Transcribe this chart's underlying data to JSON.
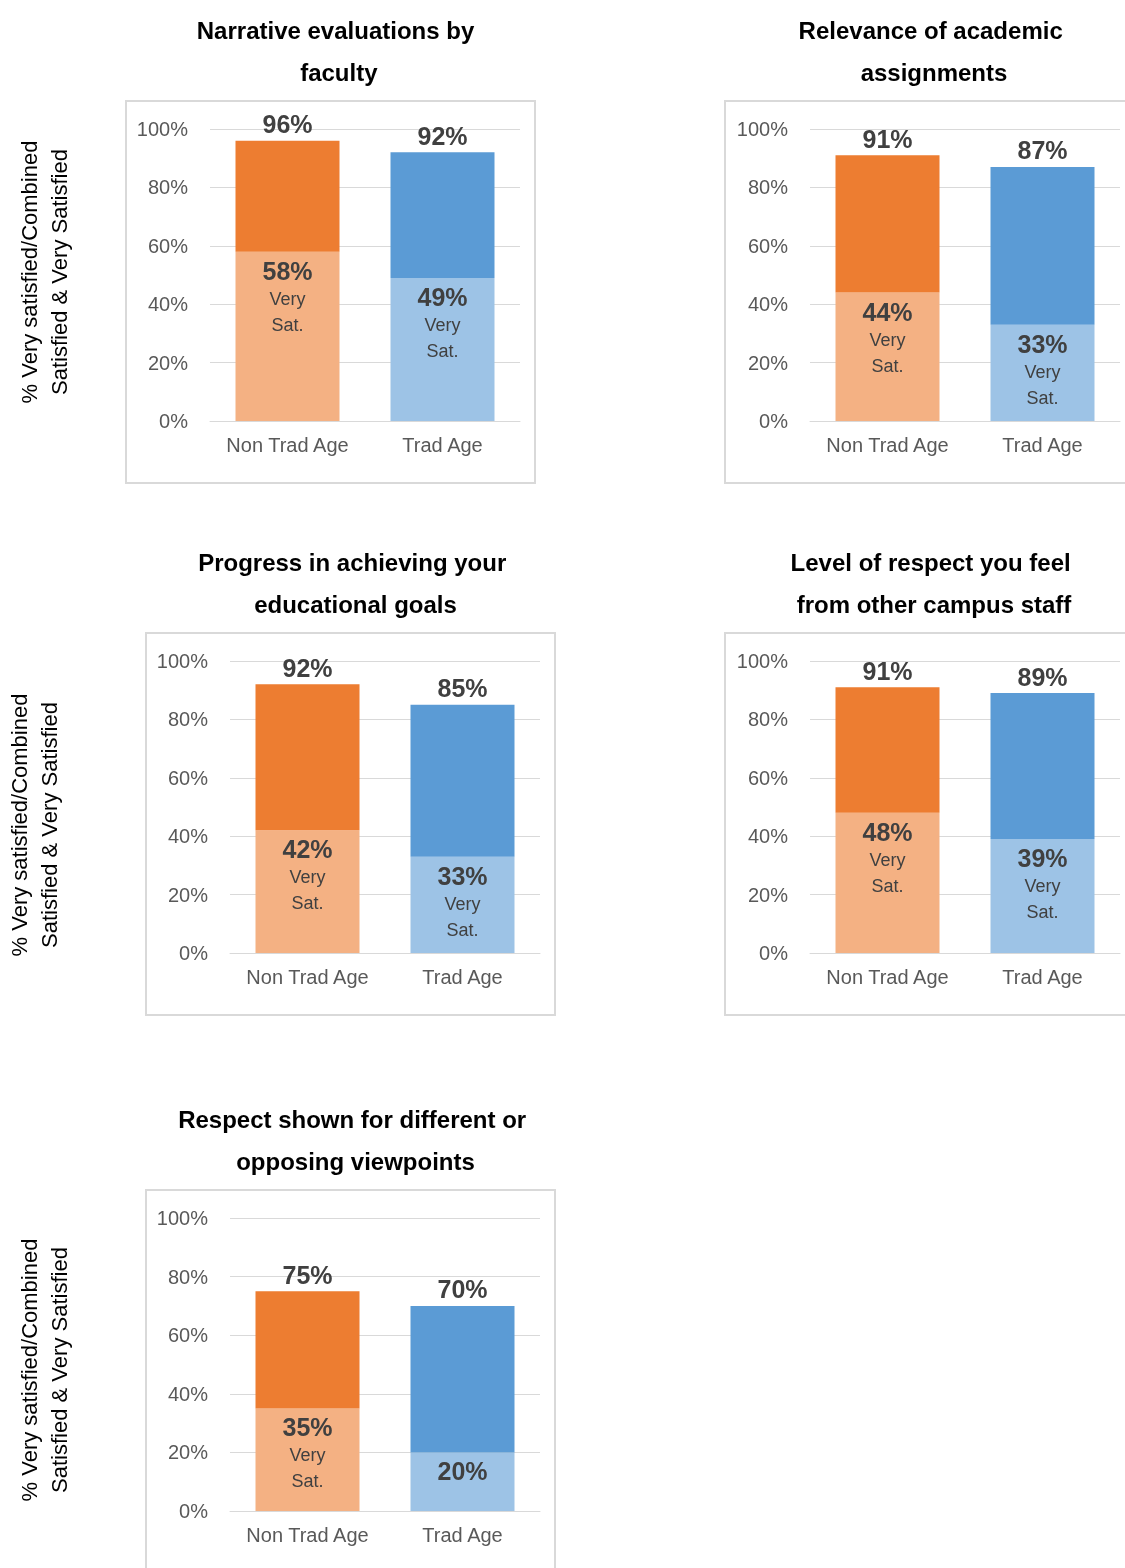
{
  "chart_data": [
    {
      "type": "bar",
      "title": "Narrative evaluations by faculty",
      "ylabel": "% Very satisfied/Combined Satisfied & Very Satisfied",
      "categories": [
        "Non Trad Age",
        "Trad Age"
      ],
      "stacked": true,
      "ylim": [
        0,
        100
      ],
      "yticks": [
        {
          "value": 0,
          "label": "0%"
        },
        {
          "value": 20,
          "label": "20%"
        },
        {
          "value": 40,
          "label": "40%"
        },
        {
          "value": 60,
          "label": "60%"
        },
        {
          "value": 80,
          "label": "80%"
        },
        {
          "value": 100,
          "label": "100%"
        }
      ],
      "grid": "y",
      "totals": [
        "96%",
        "92%"
      ],
      "series": [
        {
          "colors": [
            "#f4b183",
            "#9dc3e6"
          ],
          "values": [
            58,
            49
          ],
          "value_labels": [
            "58% Very Sat.",
            "49% Very Sat."
          ]
        },
        {
          "colors": [
            "#ed7d31",
            "#5b9bd5"
          ],
          "values": [
            38,
            43
          ]
        }
      ]
    },
    {
      "type": "bar",
      "title": "Relevance of academic assignments",
      "categories": [
        "Non Trad Age",
        "Trad Age"
      ],
      "stacked": true,
      "ylim": [
        0,
        100
      ],
      "yticks": [
        {
          "value": 0,
          "label": "0%"
        },
        {
          "value": 20,
          "label": "20%"
        },
        {
          "value": 40,
          "label": "40%"
        },
        {
          "value": 60,
          "label": "60%"
        },
        {
          "value": 80,
          "label": "80%"
        },
        {
          "value": 100,
          "label": "100%"
        }
      ],
      "grid": "y",
      "totals": [
        "91%",
        "87%"
      ],
      "series": [
        {
          "colors": [
            "#f4b183",
            "#9dc3e6"
          ],
          "values": [
            44,
            33
          ],
          "value_labels": [
            "44% Very Sat.",
            "33% Very Sat."
          ]
        },
        {
          "colors": [
            "#ed7d31",
            "#5b9bd5"
          ],
          "values": [
            47,
            54
          ]
        }
      ]
    },
    {
      "type": "bar",
      "title": "Progress in achieving your educational goals",
      "ylabel": "% Very satisfied/Combined Satisfied & Very Satisfied",
      "categories": [
        "Non Trad Age",
        "Trad Age"
      ],
      "stacked": true,
      "ylim": [
        0,
        100
      ],
      "yticks": [
        {
          "value": 0,
          "label": "0%"
        },
        {
          "value": 20,
          "label": "20%"
        },
        {
          "value": 40,
          "label": "40%"
        },
        {
          "value": 60,
          "label": "60%"
        },
        {
          "value": 80,
          "label": "80%"
        },
        {
          "value": 100,
          "label": "100%"
        }
      ],
      "grid": "y",
      "totals": [
        "92%",
        "85%"
      ],
      "series": [
        {
          "colors": [
            "#f4b183",
            "#9dc3e6"
          ],
          "values": [
            42,
            33
          ],
          "value_labels": [
            "42% Very Sat.",
            "33% Very Sat."
          ]
        },
        {
          "colors": [
            "#ed7d31",
            "#5b9bd5"
          ],
          "values": [
            50,
            52
          ]
        }
      ]
    },
    {
      "type": "bar",
      "title": "Level of respect you feel from other campus staff",
      "categories": [
        "Non Trad Age",
        "Trad Age"
      ],
      "stacked": true,
      "ylim": [
        0,
        100
      ],
      "yticks": [
        {
          "value": 0,
          "label": "0%"
        },
        {
          "value": 20,
          "label": "20%"
        },
        {
          "value": 40,
          "label": "40%"
        },
        {
          "value": 60,
          "label": "60%"
        },
        {
          "value": 80,
          "label": "80%"
        },
        {
          "value": 100,
          "label": "100%"
        }
      ],
      "grid": "y",
      "totals": [
        "91%",
        "89%"
      ],
      "series": [
        {
          "colors": [
            "#f4b183",
            "#9dc3e6"
          ],
          "values": [
            48,
            39
          ],
          "value_labels": [
            "48% Very Sat.",
            "39% Very Sat."
          ]
        },
        {
          "colors": [
            "#ed7d31",
            "#5b9bd5"
          ],
          "values": [
            43,
            50
          ]
        }
      ]
    },
    {
      "type": "bar",
      "title": "Respect shown for different or opposing viewpoints",
      "ylabel": "% Very satisfied/Combined Satisfied & Very Satisfied",
      "categories": [
        "Non Trad Age",
        "Trad Age"
      ],
      "stacked": true,
      "ylim": [
        0,
        100
      ],
      "yticks": [
        {
          "value": 0,
          "label": "0%"
        },
        {
          "value": 20,
          "label": "20%"
        },
        {
          "value": 40,
          "label": "40%"
        },
        {
          "value": 60,
          "label": "60%"
        },
        {
          "value": 80,
          "label": "80%"
        },
        {
          "value": 100,
          "label": "100%"
        }
      ],
      "grid": "y",
      "totals": [
        "75%",
        "70%"
      ],
      "series": [
        {
          "colors": [
            "#f4b183",
            "#9dc3e6"
          ],
          "values": [
            35,
            20
          ],
          "value_labels": [
            "35% Very Sat.",
            "20%"
          ]
        },
        {
          "colors": [
            "#ed7d31",
            "#5b9bd5"
          ],
          "values": [
            40,
            50
          ]
        }
      ]
    }
  ]
}
